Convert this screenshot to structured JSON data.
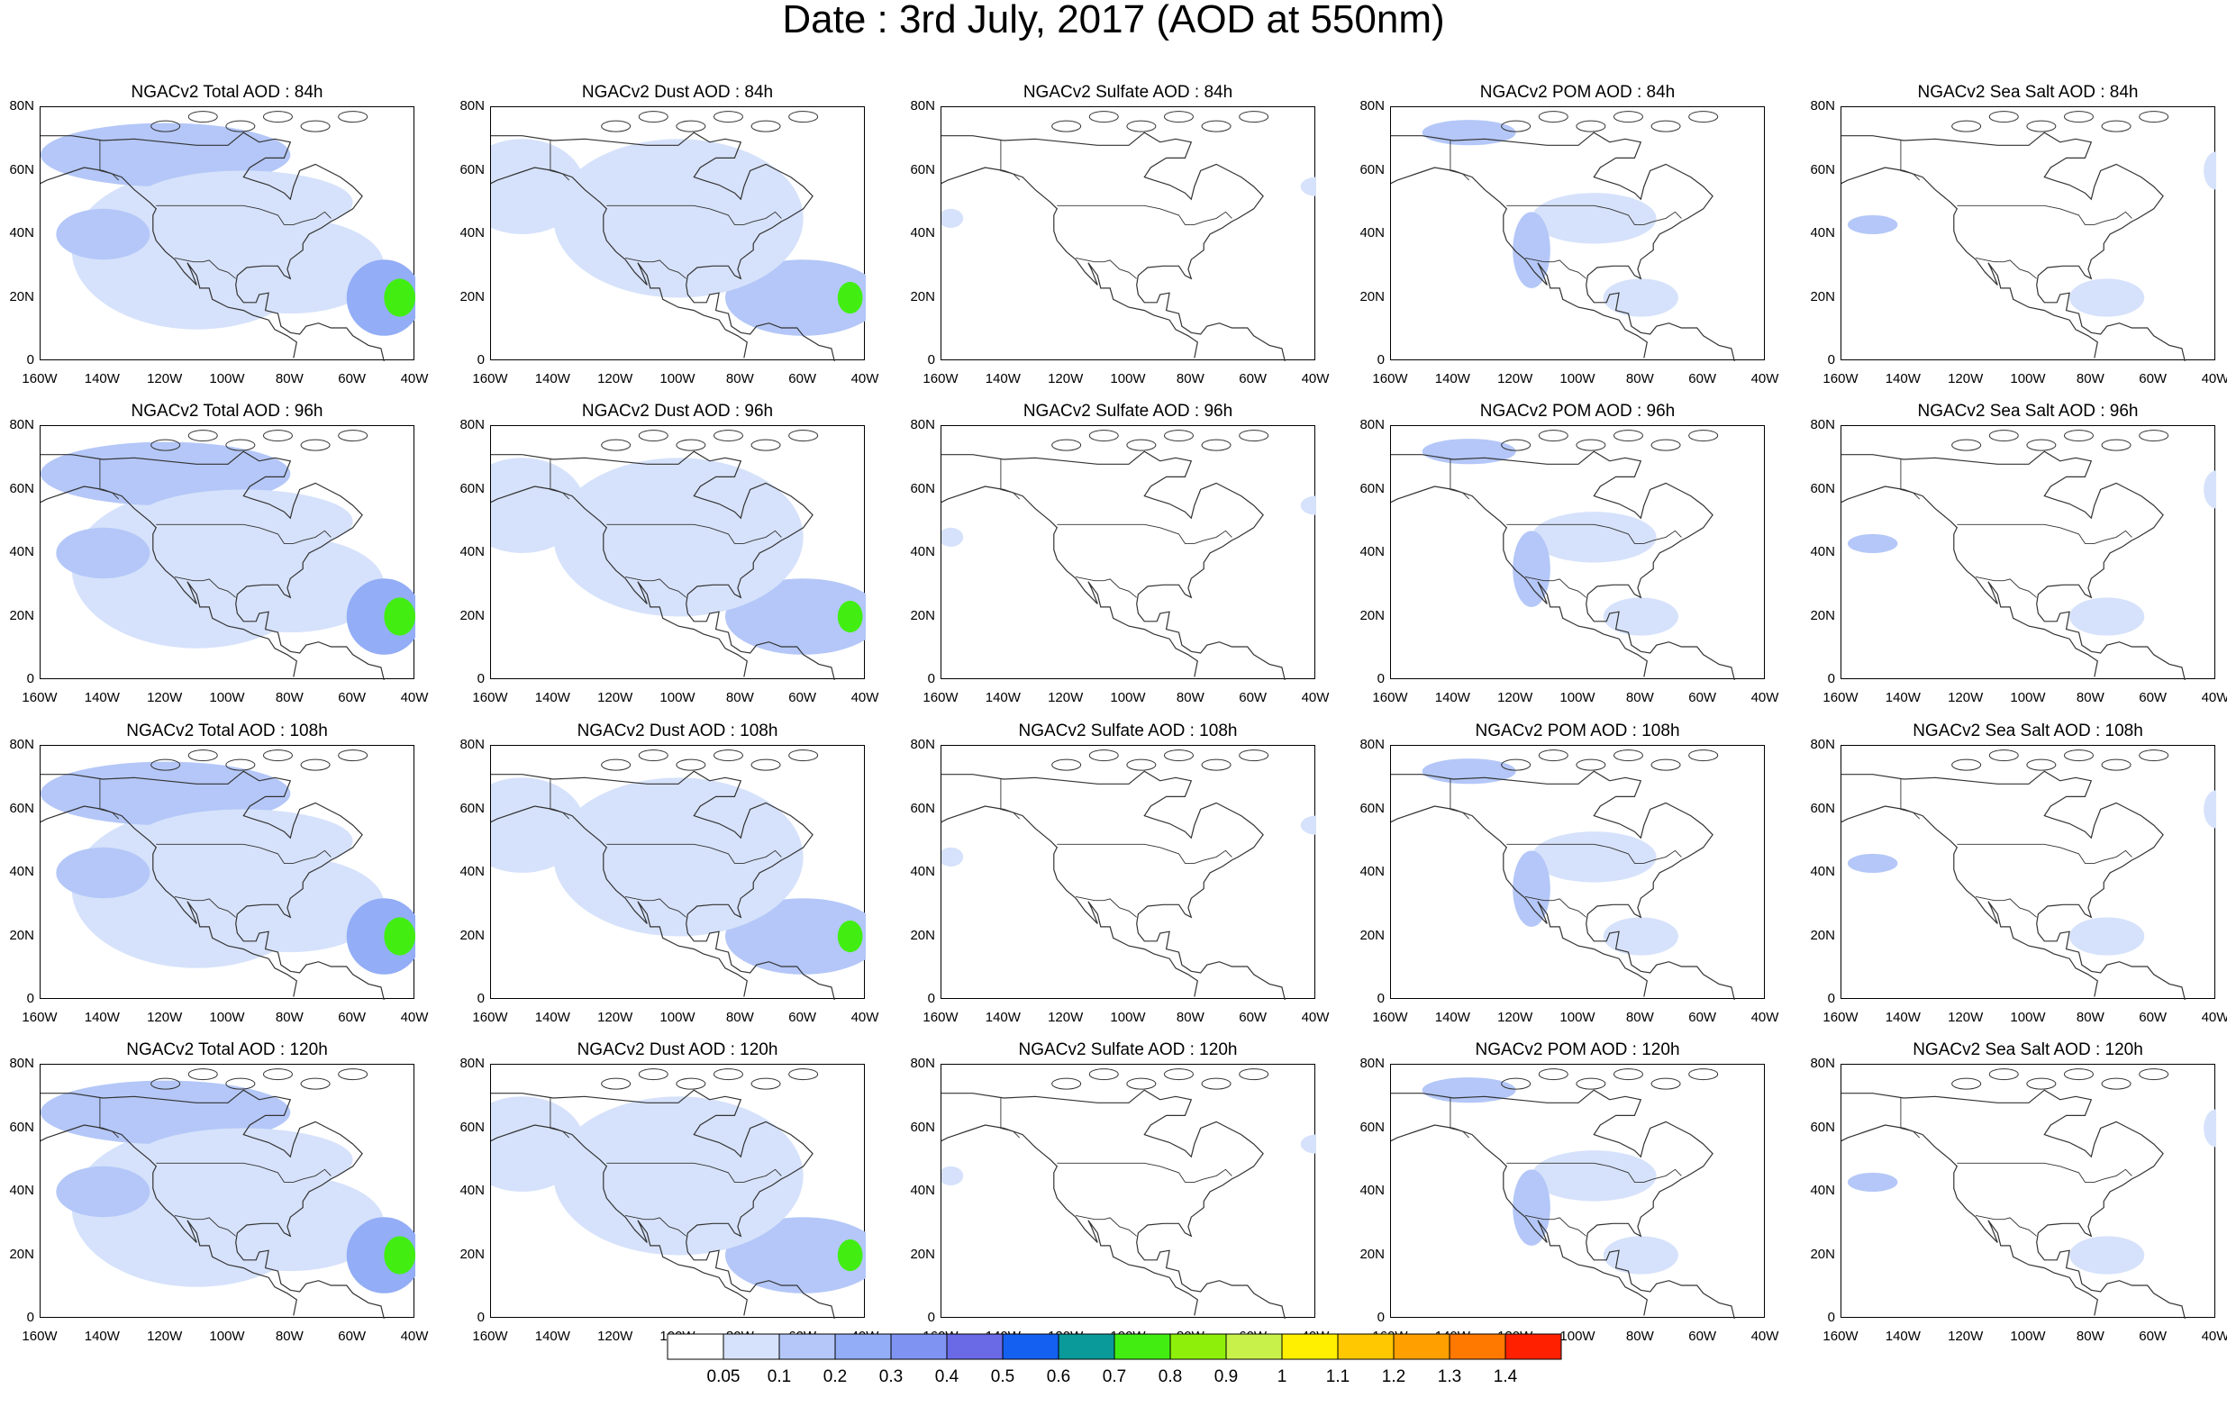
{
  "title": "Date : 3rd July, 2017 (AOD at 550nm)",
  "panels": [
    [
      "NGACv2 Total AOD : 84h",
      "NGACv2 Dust AOD : 84h",
      "NGACv2 Sulfate AOD : 84h",
      "NGACv2 POM AOD : 84h",
      "NGACv2 Sea Salt AOD : 84h"
    ],
    [
      "NGACv2 Total AOD : 96h",
      "NGACv2 Dust AOD : 96h",
      "NGACv2 Sulfate AOD : 96h",
      "NGACv2 POM AOD : 96h",
      "NGACv2 Sea Salt AOD : 96h"
    ],
    [
      "NGACv2 Total AOD : 108h",
      "NGACv2 Dust AOD : 108h",
      "NGACv2 Sulfate AOD : 108h",
      "NGACv2 POM AOD : 108h",
      "NGACv2 Sea Salt AOD : 108h"
    ],
    [
      "NGACv2 Total AOD : 120h",
      "NGACv2 Dust AOD : 120h",
      "NGACv2 Sulfate AOD : 120h",
      "NGACv2 POM AOD : 120h",
      "NGACv2 Sea Salt  AOD : 120h"
    ]
  ],
  "ytick_labels": [
    "0",
    "20N",
    "40N",
    "60N",
    "80N"
  ],
  "xtick_labels": [
    "160W",
    "140W",
    "120W",
    "100W",
    "80W",
    "60W",
    "40W"
  ],
  "colorbar": {
    "levels": [
      "0.05",
      "0.1",
      "0.2",
      "0.3",
      "0.4",
      "0.5",
      "0.6",
      "0.7",
      "0.8",
      "0.9",
      "1",
      "1.1",
      "1.2",
      "1.3",
      "1.4"
    ],
    "colors": [
      "#ffffff",
      "#d6e2fb",
      "#b4c7f8",
      "#93adf6",
      "#7f94f2",
      "#6a6ae6",
      "#1460f0",
      "#0a9a9a",
      "#42ee12",
      "#8ef00a",
      "#c8f24a",
      "#fff000",
      "#ffc800",
      "#ffa000",
      "#ff7800",
      "#ff2000"
    ]
  }
}
